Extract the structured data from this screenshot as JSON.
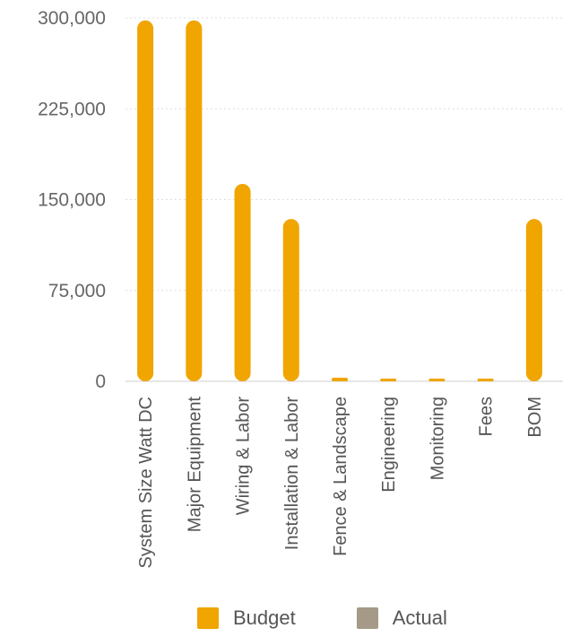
{
  "chart_data": {
    "type": "bar",
    "categories": [
      "System Size Watt DC",
      "Major Equipment",
      "Wiring & Labor",
      "Installation & Labor",
      "Fence & Landscape",
      "Engineering",
      "Monitoring",
      "Fees",
      "BOM"
    ],
    "series": [
      {
        "name": "Budget",
        "color": "#F0A500",
        "values": [
          298000,
          298000,
          163000,
          134000,
          3000,
          1000,
          1000,
          1000,
          134000
        ]
      },
      {
        "name": "Actual",
        "color": "#A49A87",
        "values": [
          0,
          0,
          0,
          0,
          0,
          0,
          0,
          0,
          0
        ]
      }
    ],
    "yticks": [
      "0",
      "75,000",
      "150,000",
      "225,000",
      "300,000"
    ],
    "ylim": [
      0,
      300000
    ],
    "grid": true,
    "legend_position": "bottom"
  }
}
